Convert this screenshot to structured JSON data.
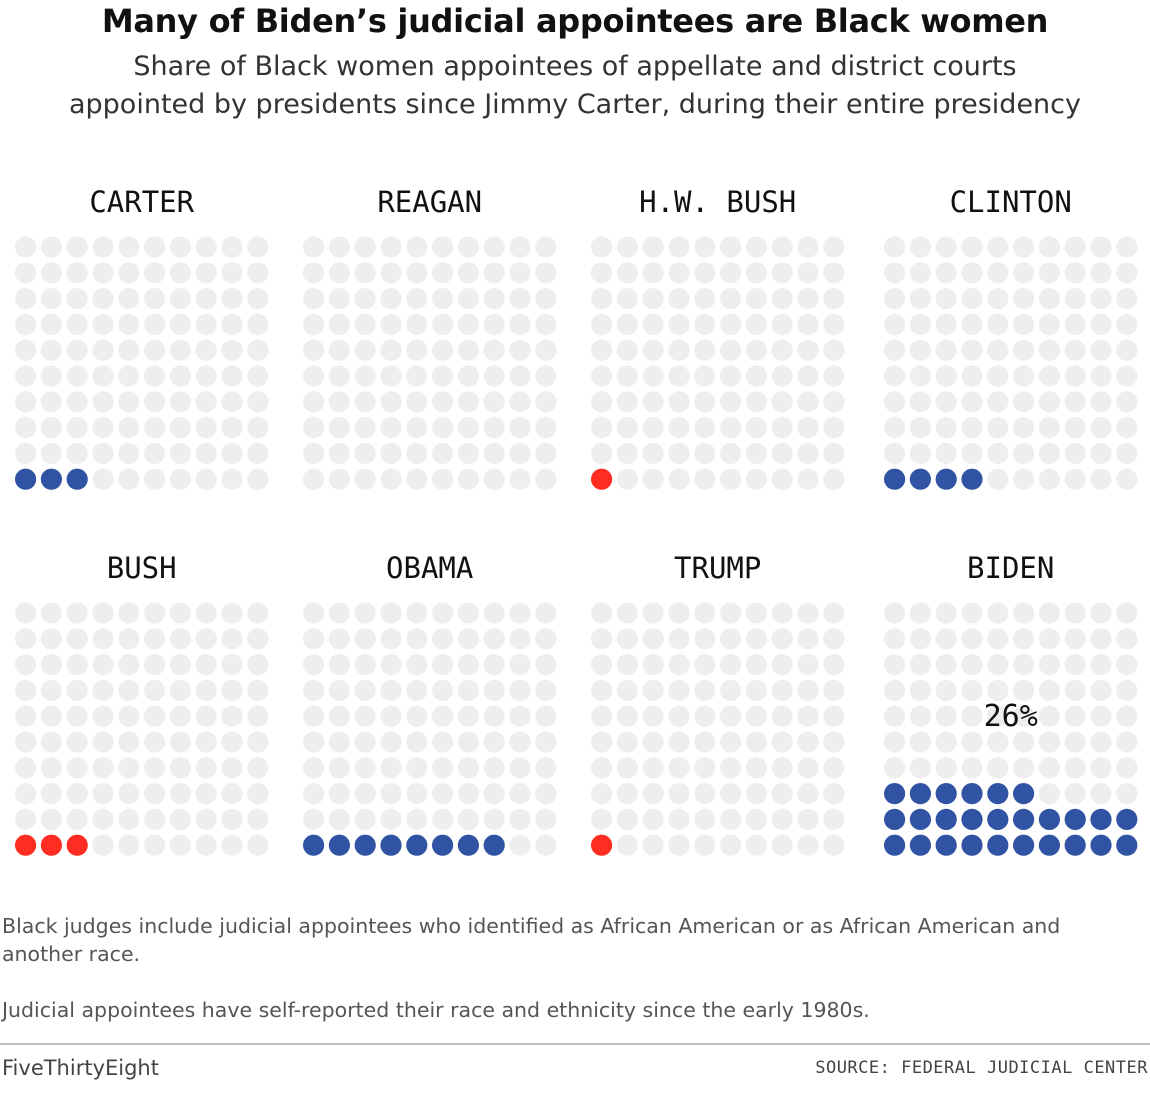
{
  "header": {
    "title": "Many of Biden’s judicial appointees are Black women",
    "subtitle_line1": "Share of Black women appointees of appellate and district courts",
    "subtitle_line2": "appointed by presidents since Jimmy Carter, during their entire presidency"
  },
  "chart_data": {
    "type": "waffle",
    "unit": "%",
    "grid": "10x10 dots, each dot = 1% of appointees",
    "colors": {
      "democrat": "#3053a3",
      "republican": "#ff2d21",
      "empty": "#eeeeee"
    },
    "panels": [
      {
        "name": "CARTER",
        "value": 3,
        "party": "democrat"
      },
      {
        "name": "REAGAN",
        "value": 0,
        "party": "republican"
      },
      {
        "name": "H.W. BUSH",
        "value": 1,
        "party": "republican"
      },
      {
        "name": "CLINTON",
        "value": 4,
        "party": "democrat"
      },
      {
        "name": "BUSH",
        "value": 3,
        "party": "republican"
      },
      {
        "name": "OBAMA",
        "value": 8,
        "party": "democrat"
      },
      {
        "name": "TRUMP",
        "value": 1,
        "party": "republican"
      },
      {
        "name": "BIDEN",
        "value": 26,
        "party": "democrat",
        "value_label": "26%"
      }
    ]
  },
  "notes": {
    "note1": "Black judges include judicial appointees who identified as African American or as African American and another race.",
    "note2": "Judicial appointees have self-reported their race and ethnicity since the early 1980s."
  },
  "footer": {
    "brand": "FiveThirtyEight",
    "source": "SOURCE: FEDERAL JUDICIAL CENTER"
  }
}
